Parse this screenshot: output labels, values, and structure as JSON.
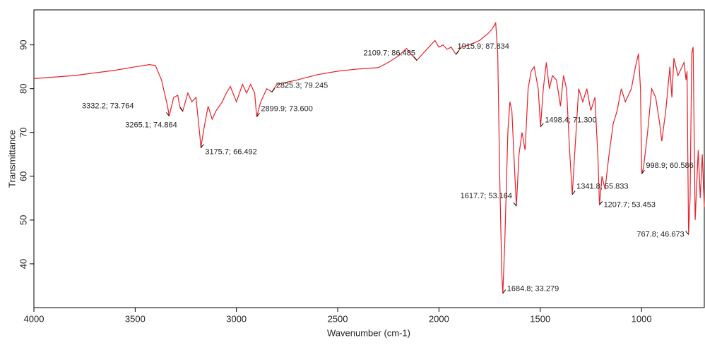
{
  "chart_data": {
    "type": "line",
    "x_label": "Wavenumber (cm-1)",
    "y_label": "Transmittance",
    "xlim": [
      4000,
      690
    ],
    "ylim": [
      30,
      98
    ],
    "xticks": [
      4000,
      3500,
      3000,
      2500,
      2000,
      1500,
      1000
    ],
    "yticks": [
      40,
      50,
      60,
      70,
      80,
      90
    ],
    "x": [
      4000,
      3800,
      3600,
      3500,
      3430,
      3400,
      3370,
      3340,
      3332.2,
      3310,
      3290,
      3280,
      3265.1,
      3240,
      3220,
      3200,
      3180,
      3175.7,
      3160,
      3140,
      3120,
      3100,
      3070,
      3050,
      3030,
      3000,
      2970,
      2950,
      2930,
      2910,
      2899.9,
      2880,
      2850,
      2825.3,
      2800,
      2700,
      2600,
      2500,
      2400,
      2300,
      2250,
      2200,
      2160,
      2130,
      2109.7,
      2080,
      2050,
      2020,
      2000,
      1980,
      1960,
      1940,
      1915.9,
      1890,
      1850,
      1800,
      1760,
      1740,
      1720,
      1710,
      1700,
      1690,
      1684.8,
      1675,
      1660,
      1650,
      1640,
      1625,
      1617.7,
      1605,
      1590,
      1575,
      1560,
      1545,
      1530,
      1510,
      1498.4,
      1485,
      1470,
      1455,
      1440,
      1420,
      1400,
      1385,
      1370,
      1355,
      1341.8,
      1330,
      1310,
      1290,
      1270,
      1250,
      1230,
      1215,
      1207.7,
      1195,
      1180,
      1160,
      1140,
      1120,
      1100,
      1080,
      1050,
      1030,
      1015,
      1005,
      998.9,
      990,
      970,
      950,
      930,
      910,
      900,
      880,
      860,
      850,
      840,
      820,
      800,
      790,
      780,
      775,
      767.8,
      760,
      752,
      745,
      735,
      720,
      710,
      700,
      690
    ],
    "series": [
      {
        "color": "#e8202a",
        "values": [
          82.3,
          83.0,
          84.2,
          85.0,
          85.5,
          85.3,
          82,
          76,
          73.764,
          78,
          78.5,
          76,
          74.864,
          79,
          77,
          78,
          69,
          66.492,
          71,
          76,
          73,
          75,
          77,
          79,
          80.5,
          77,
          81,
          79,
          81,
          79,
          73.6,
          77,
          80,
          79.245,
          81,
          82,
          83.2,
          84,
          84.5,
          84.8,
          86,
          87.5,
          89.2,
          87.5,
          86.485,
          88,
          89.5,
          91,
          89.5,
          90,
          89,
          89.5,
          87.834,
          89.5,
          90,
          91,
          92.5,
          93.5,
          95,
          88,
          60,
          38,
          33.279,
          45,
          70,
          77,
          75,
          60,
          53.164,
          65,
          70,
          66,
          80,
          84,
          85,
          80,
          71.3,
          80,
          86,
          80,
          83,
          82,
          76,
          83,
          80,
          66,
          55.833,
          65,
          80,
          77,
          80,
          75,
          78,
          64,
          53.453,
          60,
          57,
          65,
          72,
          75,
          80,
          77,
          80,
          85,
          88,
          80,
          60.586,
          62,
          70,
          80,
          78,
          72,
          68,
          75,
          85,
          78,
          87,
          83,
          85,
          86,
          82,
          84,
          46.673,
          55,
          88,
          89.5,
          50,
          66,
          55,
          65,
          53
        ]
      }
    ],
    "annotations": [
      {
        "x": 3332.2,
        "y": 73.764,
        "label": "3332.2; 73.764"
      },
      {
        "x": 3265.1,
        "y": 74.864,
        "label": "3265.1; 74.864"
      },
      {
        "x": 3175.7,
        "y": 66.492,
        "label": "3175.7; 66.492"
      },
      {
        "x": 2899.9,
        "y": 73.6,
        "label": "2899.9; 73.600"
      },
      {
        "x": 2825.3,
        "y": 79.245,
        "label": "2825.3; 79.245"
      },
      {
        "x": 2109.7,
        "y": 86.485,
        "label": "2109.7; 86.485"
      },
      {
        "x": 1915.9,
        "y": 87.834,
        "label": "1915.9; 87.834"
      },
      {
        "x": 1684.8,
        "y": 33.279,
        "label": "1684.8; 33.279"
      },
      {
        "x": 1617.7,
        "y": 53.164,
        "label": "1617.7; 53.164"
      },
      {
        "x": 1498.4,
        "y": 71.3,
        "label": "1498.4; 71.300"
      },
      {
        "x": 1341.8,
        "y": 55.833,
        "label": "1341.8; 55.833"
      },
      {
        "x": 1207.7,
        "y": 53.453,
        "label": "1207.7; 53.453"
      },
      {
        "x": 998.9,
        "y": 60.586,
        "label": "998.9; 60.586"
      },
      {
        "x": 767.8,
        "y": 46.673,
        "label": "767.8; 46.673"
      }
    ]
  }
}
